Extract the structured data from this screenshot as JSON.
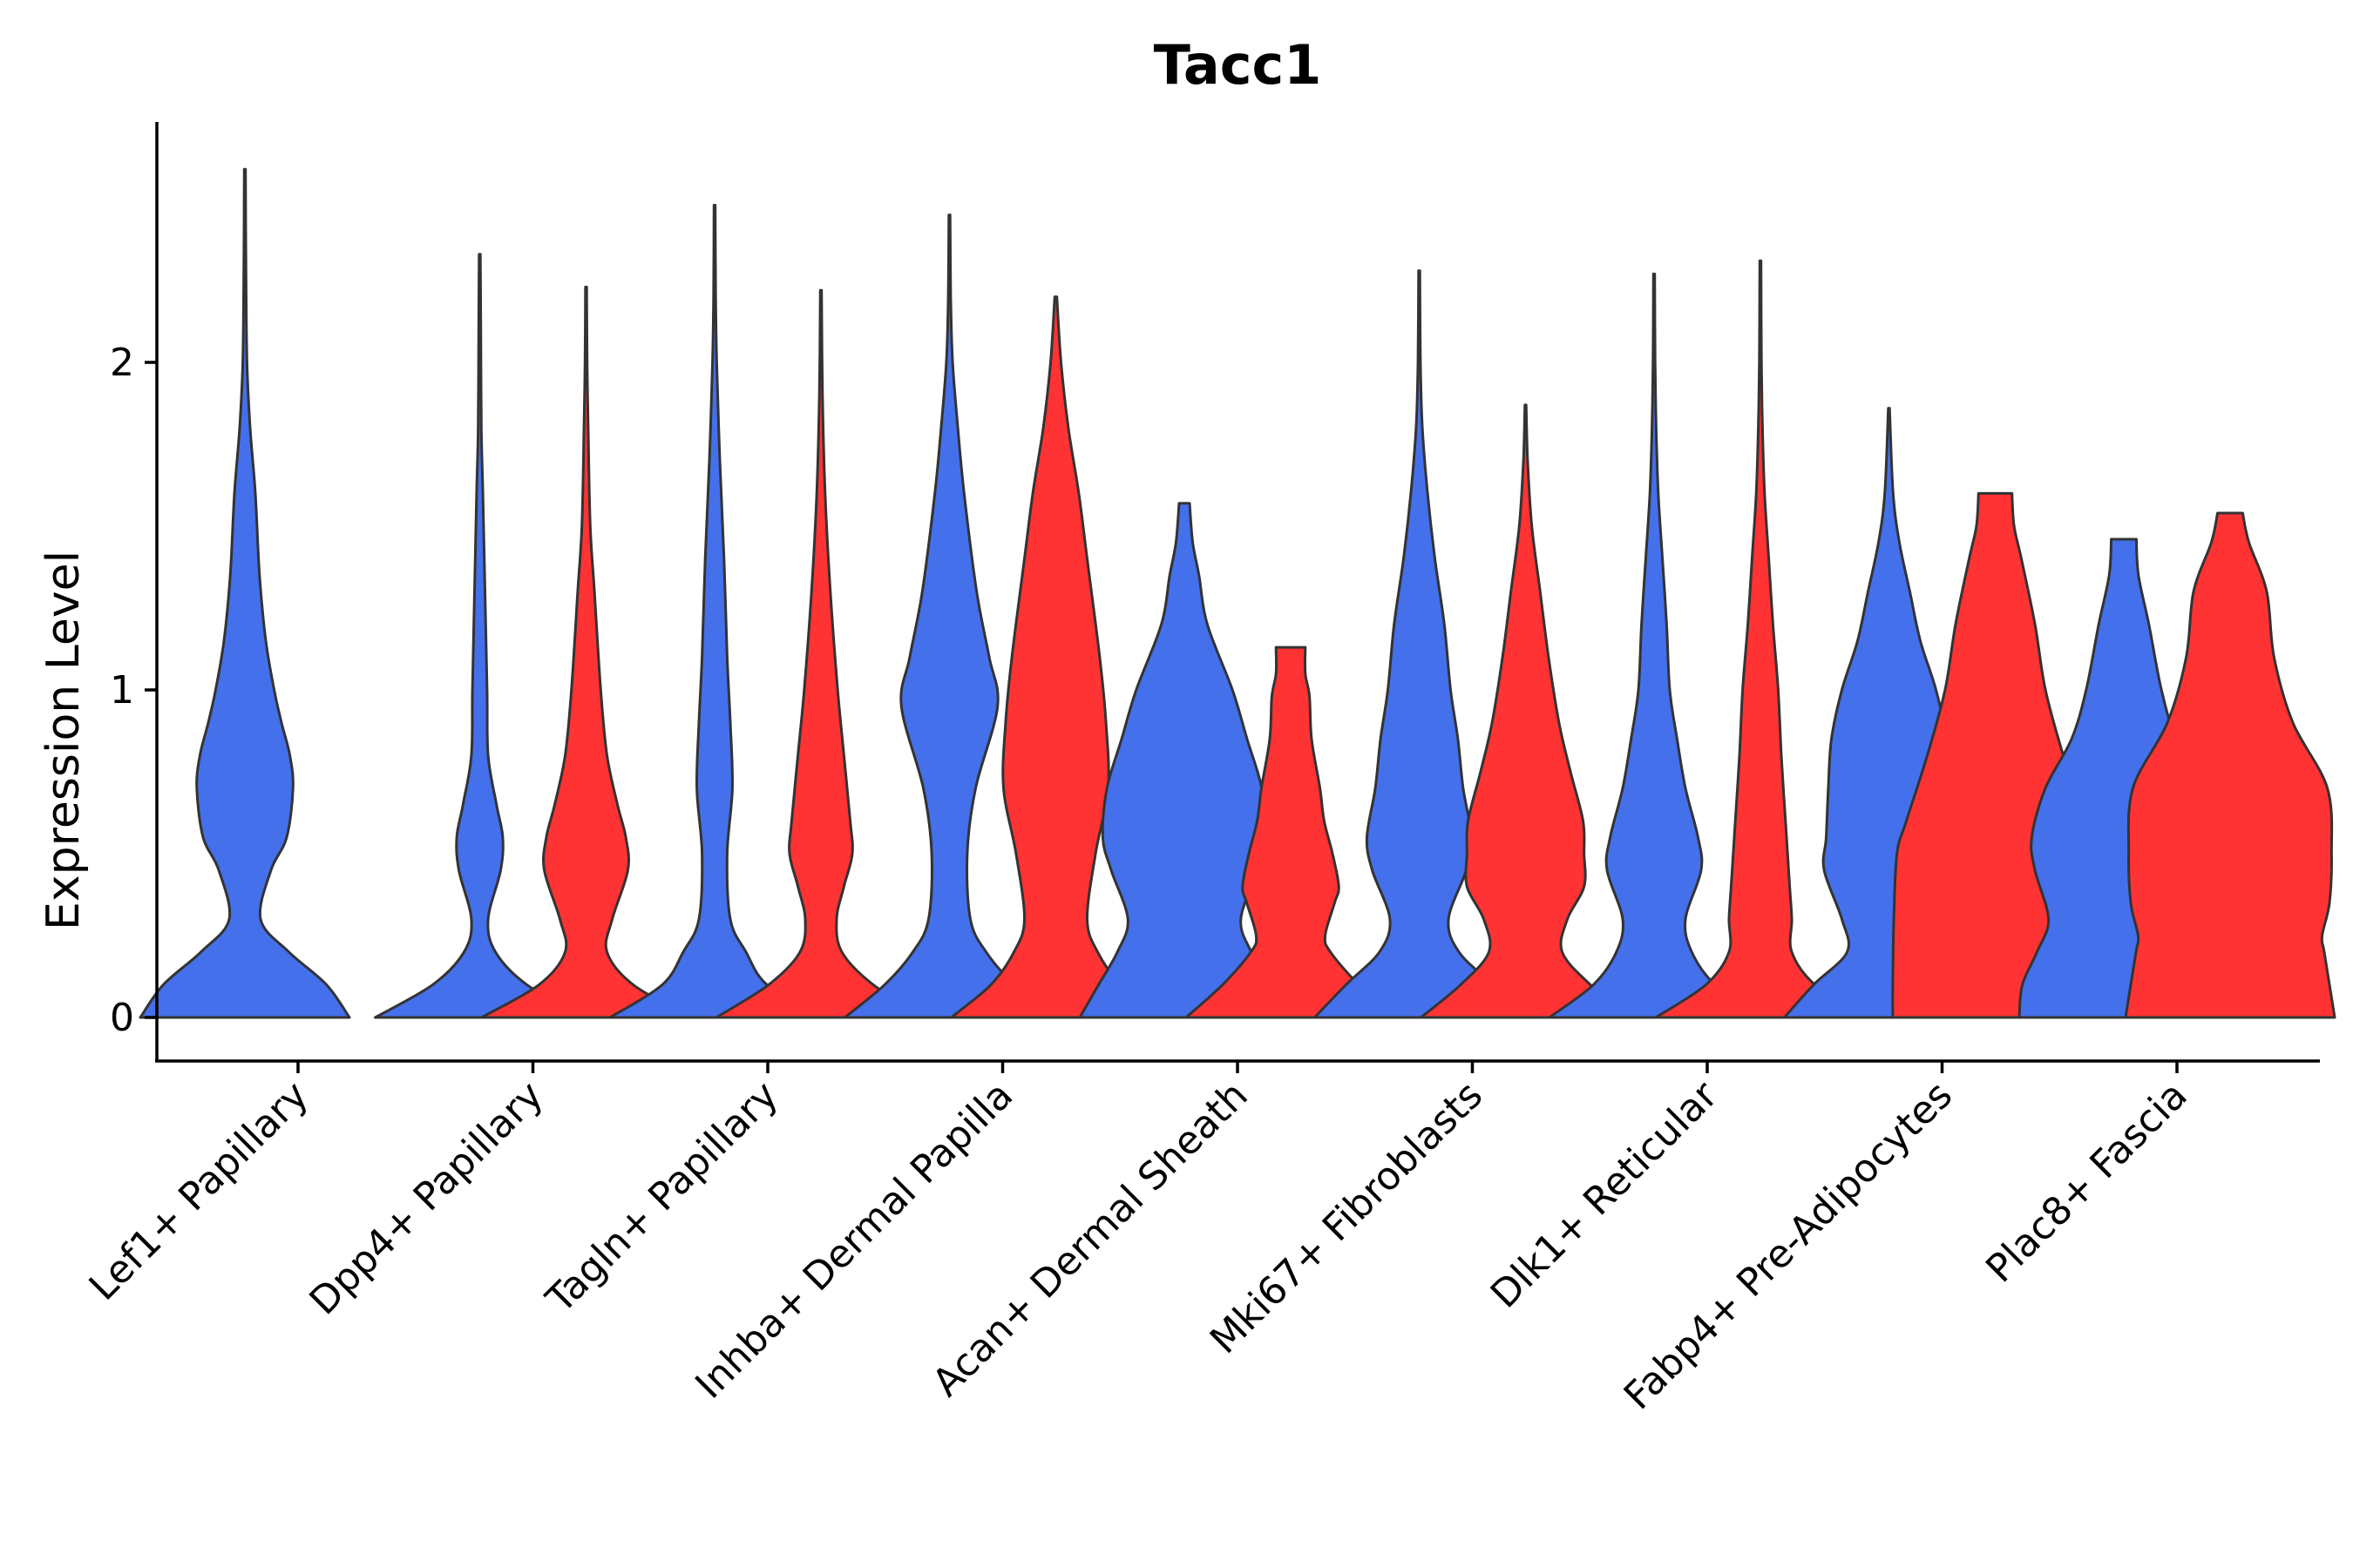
{
  "chart_data": {
    "type": "violin",
    "title": "Tacc1",
    "xlabel": "",
    "ylabel": "Expression Level",
    "ylim": [
      -0.13,
      2.73
    ],
    "yticks": [
      0,
      1,
      2
    ],
    "series": [
      {
        "name": "group 1",
        "color": "#4570EB"
      },
      {
        "name": "group 2",
        "color": "#FF3333"
      }
    ],
    "categories": [
      "Lef1+ Papillary",
      "Dpp4+ Papillary",
      "Tagln+ Papillary",
      "Inhba+ Dermal Papilla",
      "Acan+ Dermal Sheath",
      "Mki67+ Fibroblasts",
      "Dlk1+ Reticular",
      "Fabp4+ Pre-Adipocytes",
      "Plac8+ Fascia"
    ],
    "violins": [
      {
        "category": "Lef1+ Papillary",
        "series": "group 1",
        "max": 2.59,
        "profile": [
          [
            0,
            1
          ],
          [
            0.1,
            0.78
          ],
          [
            0.2,
            0.42
          ],
          [
            0.3,
            0.15
          ],
          [
            0.45,
            0.25
          ],
          [
            0.55,
            0.4
          ],
          [
            0.7,
            0.46
          ],
          [
            0.8,
            0.43
          ],
          [
            0.9,
            0.35
          ],
          [
            1.0,
            0.28
          ],
          [
            1.15,
            0.2
          ],
          [
            1.35,
            0.14
          ],
          [
            1.6,
            0.1
          ],
          [
            1.8,
            0.05
          ],
          [
            2.0,
            0.02
          ],
          [
            2.3,
            0.01
          ],
          [
            2.59,
            0.006
          ]
        ]
      },
      {
        "category": "Dpp4+ Papillary",
        "series": "group 1",
        "max": 2.33,
        "profile": [
          [
            0,
            1
          ],
          [
            0.1,
            0.45
          ],
          [
            0.2,
            0.15
          ],
          [
            0.3,
            0.08
          ],
          [
            0.45,
            0.2
          ],
          [
            0.55,
            0.22
          ],
          [
            0.65,
            0.16
          ],
          [
            0.8,
            0.08
          ],
          [
            1.0,
            0.07
          ],
          [
            1.3,
            0.05
          ],
          [
            1.6,
            0.03
          ],
          [
            1.8,
            0.015
          ],
          [
            2.1,
            0.01
          ],
          [
            2.33,
            0.006
          ]
        ]
      },
      {
        "category": "Dpp4+ Papillary",
        "series": "group 2",
        "max": 2.23,
        "profile": [
          [
            0,
            1
          ],
          [
            0.1,
            0.45
          ],
          [
            0.2,
            0.2
          ],
          [
            0.3,
            0.25
          ],
          [
            0.45,
            0.4
          ],
          [
            0.55,
            0.38
          ],
          [
            0.65,
            0.3
          ],
          [
            0.8,
            0.2
          ],
          [
            1.0,
            0.14
          ],
          [
            1.3,
            0.08
          ],
          [
            1.5,
            0.04
          ],
          [
            1.8,
            0.02
          ],
          [
            2.0,
            0.01
          ],
          [
            2.23,
            0.006
          ]
        ]
      },
      {
        "category": "Tagln+ Papillary",
        "series": "group 1",
        "max": 2.48,
        "profile": [
          [
            0,
            1
          ],
          [
            0.1,
            0.5
          ],
          [
            0.2,
            0.3
          ],
          [
            0.3,
            0.15
          ],
          [
            0.5,
            0.12
          ],
          [
            0.7,
            0.17
          ],
          [
            0.9,
            0.15
          ],
          [
            1.1,
            0.12
          ],
          [
            1.4,
            0.09
          ],
          [
            1.7,
            0.05
          ],
          [
            2.0,
            0.02
          ],
          [
            2.2,
            0.01
          ],
          [
            2.48,
            0.006
          ]
        ]
      },
      {
        "category": "Tagln+ Papillary",
        "series": "group 2",
        "max": 2.22,
        "profile": [
          [
            0,
            1
          ],
          [
            0.1,
            0.5
          ],
          [
            0.2,
            0.2
          ],
          [
            0.3,
            0.15
          ],
          [
            0.4,
            0.22
          ],
          [
            0.5,
            0.3
          ],
          [
            0.6,
            0.28
          ],
          [
            0.8,
            0.22
          ],
          [
            1.0,
            0.16
          ],
          [
            1.3,
            0.09
          ],
          [
            1.6,
            0.04
          ],
          [
            1.9,
            0.015
          ],
          [
            2.22,
            0.006
          ]
        ]
      },
      {
        "category": "Inhba+ Dermal Papilla",
        "series": "group 1",
        "max": 2.45,
        "profile": [
          [
            0,
            1
          ],
          [
            0.1,
            0.62
          ],
          [
            0.2,
            0.35
          ],
          [
            0.3,
            0.2
          ],
          [
            0.5,
            0.17
          ],
          [
            0.7,
            0.25
          ],
          [
            0.95,
            0.46
          ],
          [
            1.1,
            0.38
          ],
          [
            1.3,
            0.26
          ],
          [
            1.6,
            0.14
          ],
          [
            1.8,
            0.08
          ],
          [
            2.0,
            0.03
          ],
          [
            2.2,
            0.012
          ],
          [
            2.45,
            0.006
          ]
        ]
      },
      {
        "category": "Inhba+ Dermal Papilla",
        "series": "group 2",
        "max": 2.2,
        "profile": [
          [
            0,
            1
          ],
          [
            0.1,
            0.62
          ],
          [
            0.2,
            0.4
          ],
          [
            0.3,
            0.3
          ],
          [
            0.5,
            0.38
          ],
          [
            0.7,
            0.5
          ],
          [
            0.9,
            0.48
          ],
          [
            1.1,
            0.42
          ],
          [
            1.4,
            0.3
          ],
          [
            1.6,
            0.22
          ],
          [
            1.8,
            0.12
          ],
          [
            2.0,
            0.05
          ],
          [
            2.2,
            0.01
          ]
        ]
      },
      {
        "category": "Acan+ Dermal Sheath",
        "series": "group 1",
        "max": 1.57,
        "profile": [
          [
            0,
            1
          ],
          [
            0.1,
            0.82
          ],
          [
            0.2,
            0.64
          ],
          [
            0.3,
            0.54
          ],
          [
            0.45,
            0.7
          ],
          [
            0.55,
            0.78
          ],
          [
            0.7,
            0.74
          ],
          [
            0.85,
            0.6
          ],
          [
            1.0,
            0.46
          ],
          [
            1.2,
            0.22
          ],
          [
            1.35,
            0.14
          ],
          [
            1.45,
            0.08
          ],
          [
            1.57,
            0.05
          ]
        ]
      },
      {
        "category": "Acan+ Dermal Sheath",
        "series": "group 2",
        "max": 1.13,
        "profile": [
          [
            0,
            1
          ],
          [
            0.1,
            0.65
          ],
          [
            0.2,
            0.38
          ],
          [
            0.25,
            0.33
          ],
          [
            0.35,
            0.42
          ],
          [
            0.4,
            0.46
          ],
          [
            0.5,
            0.4
          ],
          [
            0.6,
            0.32
          ],
          [
            0.7,
            0.28
          ],
          [
            0.85,
            0.2
          ],
          [
            0.98,
            0.18
          ],
          [
            1.05,
            0.14
          ],
          [
            1.13,
            0.14
          ]
        ]
      },
      {
        "category": "Mki67+ Fibroblasts",
        "series": "group 1",
        "max": 2.28,
        "profile": [
          [
            0,
            1
          ],
          [
            0.1,
            0.7
          ],
          [
            0.2,
            0.38
          ],
          [
            0.3,
            0.28
          ],
          [
            0.45,
            0.45
          ],
          [
            0.55,
            0.5
          ],
          [
            0.7,
            0.42
          ],
          [
            0.85,
            0.37
          ],
          [
            1.0,
            0.3
          ],
          [
            1.2,
            0.24
          ],
          [
            1.4,
            0.15
          ],
          [
            1.6,
            0.08
          ],
          [
            1.8,
            0.03
          ],
          [
            2.0,
            0.012
          ],
          [
            2.28,
            0.006
          ]
        ]
      },
      {
        "category": "Mki67+ Fibroblasts",
        "series": "group 2",
        "max": 1.87,
        "profile": [
          [
            0,
            1
          ],
          [
            0.1,
            0.62
          ],
          [
            0.2,
            0.35
          ],
          [
            0.3,
            0.4
          ],
          [
            0.4,
            0.56
          ],
          [
            0.5,
            0.56
          ],
          [
            0.6,
            0.55
          ],
          [
            0.75,
            0.43
          ],
          [
            0.9,
            0.32
          ],
          [
            1.1,
            0.22
          ],
          [
            1.3,
            0.14
          ],
          [
            1.5,
            0.06
          ],
          [
            1.7,
            0.02
          ],
          [
            1.87,
            0.006
          ]
        ]
      },
      {
        "category": "Dlk1+ Reticular",
        "series": "group 1",
        "max": 2.27,
        "profile": [
          [
            0,
            1
          ],
          [
            0.1,
            0.58
          ],
          [
            0.2,
            0.36
          ],
          [
            0.3,
            0.3
          ],
          [
            0.45,
            0.45
          ],
          [
            0.55,
            0.42
          ],
          [
            0.7,
            0.3
          ],
          [
            0.85,
            0.22
          ],
          [
            1.0,
            0.15
          ],
          [
            1.2,
            0.12
          ],
          [
            1.4,
            0.08
          ],
          [
            1.6,
            0.04
          ],
          [
            1.8,
            0.02
          ],
          [
            2.0,
            0.01
          ],
          [
            2.27,
            0.006
          ]
        ]
      },
      {
        "category": "Dlk1+ Reticular",
        "series": "group 2",
        "max": 2.31,
        "profile": [
          [
            0,
            1
          ],
          [
            0.1,
            0.52
          ],
          [
            0.2,
            0.3
          ],
          [
            0.3,
            0.3
          ],
          [
            0.4,
            0.28
          ],
          [
            0.6,
            0.24
          ],
          [
            0.8,
            0.2
          ],
          [
            1.0,
            0.17
          ],
          [
            1.2,
            0.12
          ],
          [
            1.4,
            0.08
          ],
          [
            1.6,
            0.04
          ],
          [
            1.8,
            0.02
          ],
          [
            2.0,
            0.01
          ],
          [
            2.31,
            0.006
          ]
        ]
      },
      {
        "category": "Fabp4+ Pre-Adipocytes",
        "series": "group 1",
        "max": 1.86,
        "profile": [
          [
            0,
            1
          ],
          [
            0.1,
            0.72
          ],
          [
            0.2,
            0.4
          ],
          [
            0.3,
            0.45
          ],
          [
            0.45,
            0.62
          ],
          [
            0.55,
            0.6
          ],
          [
            0.7,
            0.58
          ],
          [
            0.85,
            0.55
          ],
          [
            1.0,
            0.45
          ],
          [
            1.15,
            0.3
          ],
          [
            1.3,
            0.2
          ],
          [
            1.45,
            0.1
          ],
          [
            1.6,
            0.04
          ],
          [
            1.86,
            0.006
          ]
        ]
      },
      {
        "category": "Fabp4+ Pre-Adipocytes",
        "series": "group 2",
        "max": 1.6,
        "profile": [
          [
            0,
            0.98
          ],
          [
            0.1,
            0.98
          ],
          [
            0.3,
            0.97
          ],
          [
            0.5,
            0.94
          ],
          [
            0.6,
            0.85
          ],
          [
            0.8,
            0.65
          ],
          [
            1.0,
            0.48
          ],
          [
            1.2,
            0.38
          ],
          [
            1.4,
            0.25
          ],
          [
            1.5,
            0.18
          ],
          [
            1.6,
            0.16
          ]
        ]
      },
      {
        "category": "Plac8+ Fascia",
        "series": "group 1",
        "max": 1.46,
        "profile": [
          [
            0,
            1
          ],
          [
            0.1,
            0.97
          ],
          [
            0.2,
            0.83
          ],
          [
            0.3,
            0.72
          ],
          [
            0.45,
            0.85
          ],
          [
            0.55,
            0.88
          ],
          [
            0.7,
            0.75
          ],
          [
            0.85,
            0.5
          ],
          [
            1.0,
            0.36
          ],
          [
            1.2,
            0.24
          ],
          [
            1.35,
            0.14
          ],
          [
            1.46,
            0.12
          ]
        ]
      },
      {
        "category": "Plac8+ Fascia",
        "series": "group 2",
        "max": 1.54,
        "profile": [
          [
            0,
            1
          ],
          [
            0.1,
            0.95
          ],
          [
            0.2,
            0.9
          ],
          [
            0.25,
            0.88
          ],
          [
            0.35,
            0.95
          ],
          [
            0.5,
            0.97
          ],
          [
            0.7,
            0.93
          ],
          [
            0.9,
            0.6
          ],
          [
            1.1,
            0.42
          ],
          [
            1.3,
            0.35
          ],
          [
            1.45,
            0.18
          ],
          [
            1.54,
            0.12
          ]
        ]
      }
    ]
  }
}
